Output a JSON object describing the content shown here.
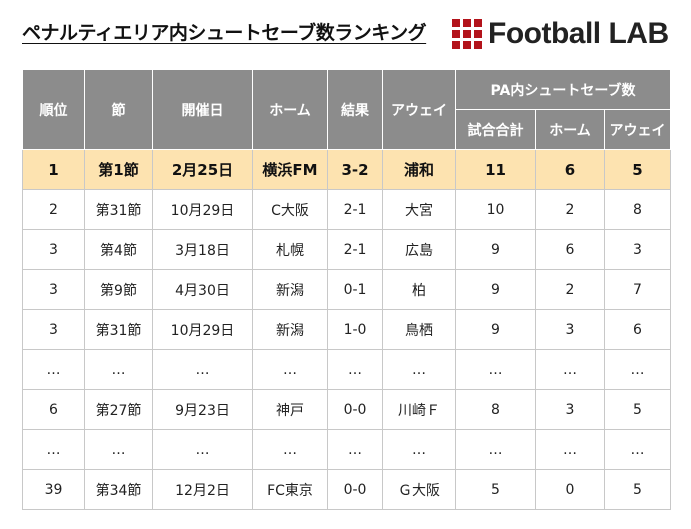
{
  "title": "ペナルティエリア内シュートセーブ数ランキング",
  "logo": {
    "icon": "football-lab-grid-logo",
    "text": "Football LAB",
    "accent_color": "#b3131b"
  },
  "table": {
    "headers": {
      "rank": "順位",
      "section": "節",
      "date": "開催日",
      "home": "ホーム",
      "result": "結果",
      "away": "アウェイ",
      "group": "PA内シュートセーブ数",
      "total": "試合合計",
      "home_saves": "ホーム",
      "away_saves": "アウェイ"
    },
    "rows": [
      {
        "rank": "1",
        "section": "第1節",
        "date": "2月25日",
        "home": "横浜FM",
        "result": "3-2",
        "away": "浦和",
        "total": "11",
        "home_saves": "6",
        "away_saves": "5"
      },
      {
        "rank": "2",
        "section": "第31節",
        "date": "10月29日",
        "home": "C大阪",
        "result": "2-1",
        "away": "大宮",
        "total": "10",
        "home_saves": "2",
        "away_saves": "8"
      },
      {
        "rank": "3",
        "section": "第4節",
        "date": "3月18日",
        "home": "札幌",
        "result": "2-1",
        "away": "広島",
        "total": "9",
        "home_saves": "6",
        "away_saves": "3"
      },
      {
        "rank": "3",
        "section": "第9節",
        "date": "4月30日",
        "home": "新潟",
        "result": "0-1",
        "away": "柏",
        "total": "9",
        "home_saves": "2",
        "away_saves": "7"
      },
      {
        "rank": "3",
        "section": "第31節",
        "date": "10月29日",
        "home": "新潟",
        "result": "1-0",
        "away": "鳥栖",
        "total": "9",
        "home_saves": "3",
        "away_saves": "6"
      },
      {
        "rank": "…",
        "section": "…",
        "date": "…",
        "home": "…",
        "result": "…",
        "away": "…",
        "total": "…",
        "home_saves": "…",
        "away_saves": "…"
      },
      {
        "rank": "6",
        "section": "第27節",
        "date": "9月23日",
        "home": "神戸",
        "result": "0-0",
        "away": "川崎Ｆ",
        "total": "8",
        "home_saves": "3",
        "away_saves": "5"
      },
      {
        "rank": "…",
        "section": "…",
        "date": "…",
        "home": "…",
        "result": "…",
        "away": "…",
        "total": "…",
        "home_saves": "…",
        "away_saves": "…"
      },
      {
        "rank": "39",
        "section": "第34節",
        "date": "12月2日",
        "home": "FC東京",
        "result": "0-0",
        "away": "Ｇ大阪",
        "total": "5",
        "home_saves": "0",
        "away_saves": "5"
      }
    ]
  },
  "colors": {
    "header_bg": "#8c8c8c",
    "highlight_bg": "#fde3b0",
    "border": "#c8c8c8"
  }
}
